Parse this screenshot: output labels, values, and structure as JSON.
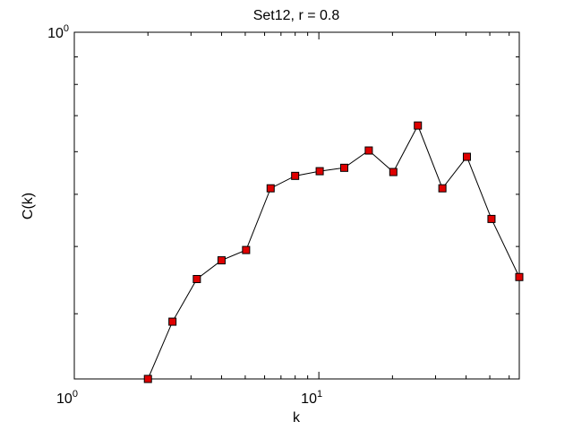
{
  "chart_data": {
    "type": "line",
    "title": "Set12, r = 0.8",
    "x_label": "k",
    "y_label": "C(k)",
    "x_scale": "log",
    "y_scale": "log",
    "xlim": [
      1,
      66
    ],
    "ylim": [
      0.227,
      1
    ],
    "xticks": [
      {
        "value": 1,
        "label": "10^0"
      },
      {
        "value": 10,
        "label": "10^1"
      }
    ],
    "yticks": [
      {
        "value": 1,
        "label": "10^0"
      }
    ],
    "series": [
      {
        "color": "#000000",
        "marker_color": "#e00000",
        "x": [
          2,
          2.52,
          3.17,
          4,
          5.04,
          6.35,
          8,
          10.08,
          12.7,
          16,
          20.16,
          25.4,
          32,
          40.3,
          50.8,
          66
        ],
        "values": [
          0.227,
          0.29,
          0.348,
          0.377,
          0.394,
          0.513,
          0.541,
          0.552,
          0.56,
          0.603,
          0.55,
          0.671,
          0.513,
          0.587,
          0.45,
          0.351
        ]
      }
    ]
  }
}
